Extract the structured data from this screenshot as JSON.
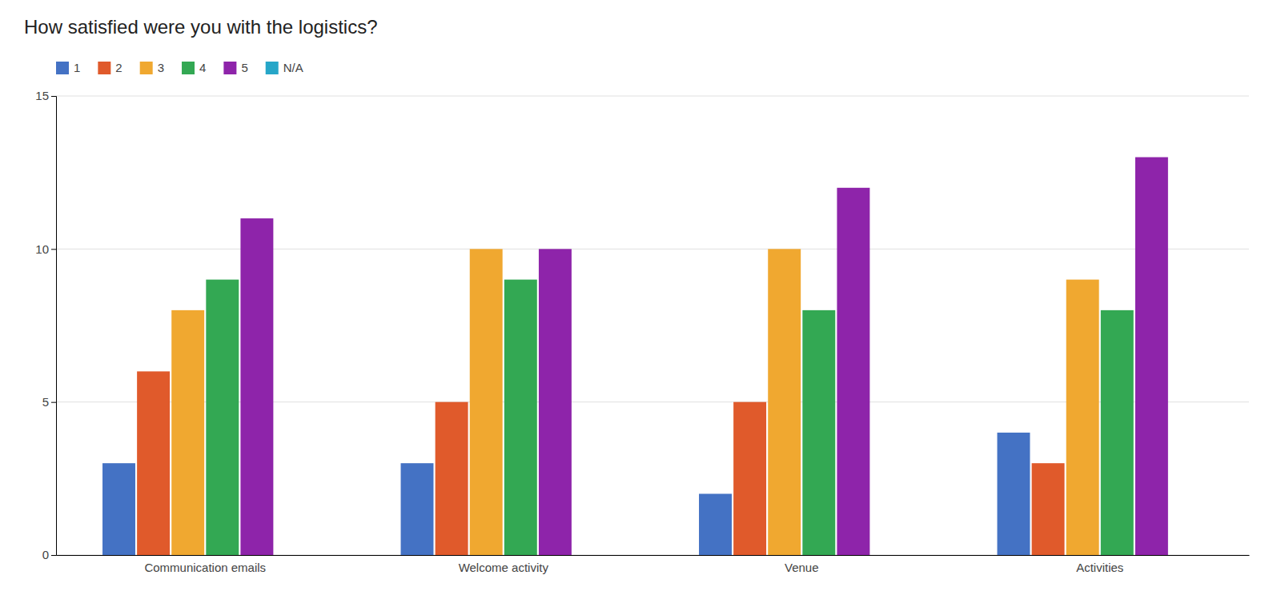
{
  "chart_data": {
    "type": "bar",
    "title": "How satisfied were you with the logistics?",
    "categories": [
      "Communication emails",
      "Welcome activity",
      "Venue",
      "Activities"
    ],
    "series": [
      {
        "name": "1",
        "color": "#4472c4",
        "values": [
          3,
          3,
          2,
          4
        ]
      },
      {
        "name": "2",
        "color": "#e05a2b",
        "values": [
          6,
          5,
          5,
          3
        ]
      },
      {
        "name": "3",
        "color": "#f0a830",
        "values": [
          8,
          10,
          10,
          9
        ]
      },
      {
        "name": "4",
        "color": "#33a853",
        "values": [
          9,
          9,
          8,
          8
        ]
      },
      {
        "name": "5",
        "color": "#8e24aa",
        "values": [
          11,
          10,
          12,
          13
        ]
      },
      {
        "name": "N/A",
        "color": "#26a6c8",
        "values": [
          0,
          0,
          0,
          0
        ]
      }
    ],
    "ylim": [
      0,
      15
    ],
    "yticks": [
      0,
      5,
      10,
      15
    ],
    "grid": true,
    "legend": "top-left"
  }
}
